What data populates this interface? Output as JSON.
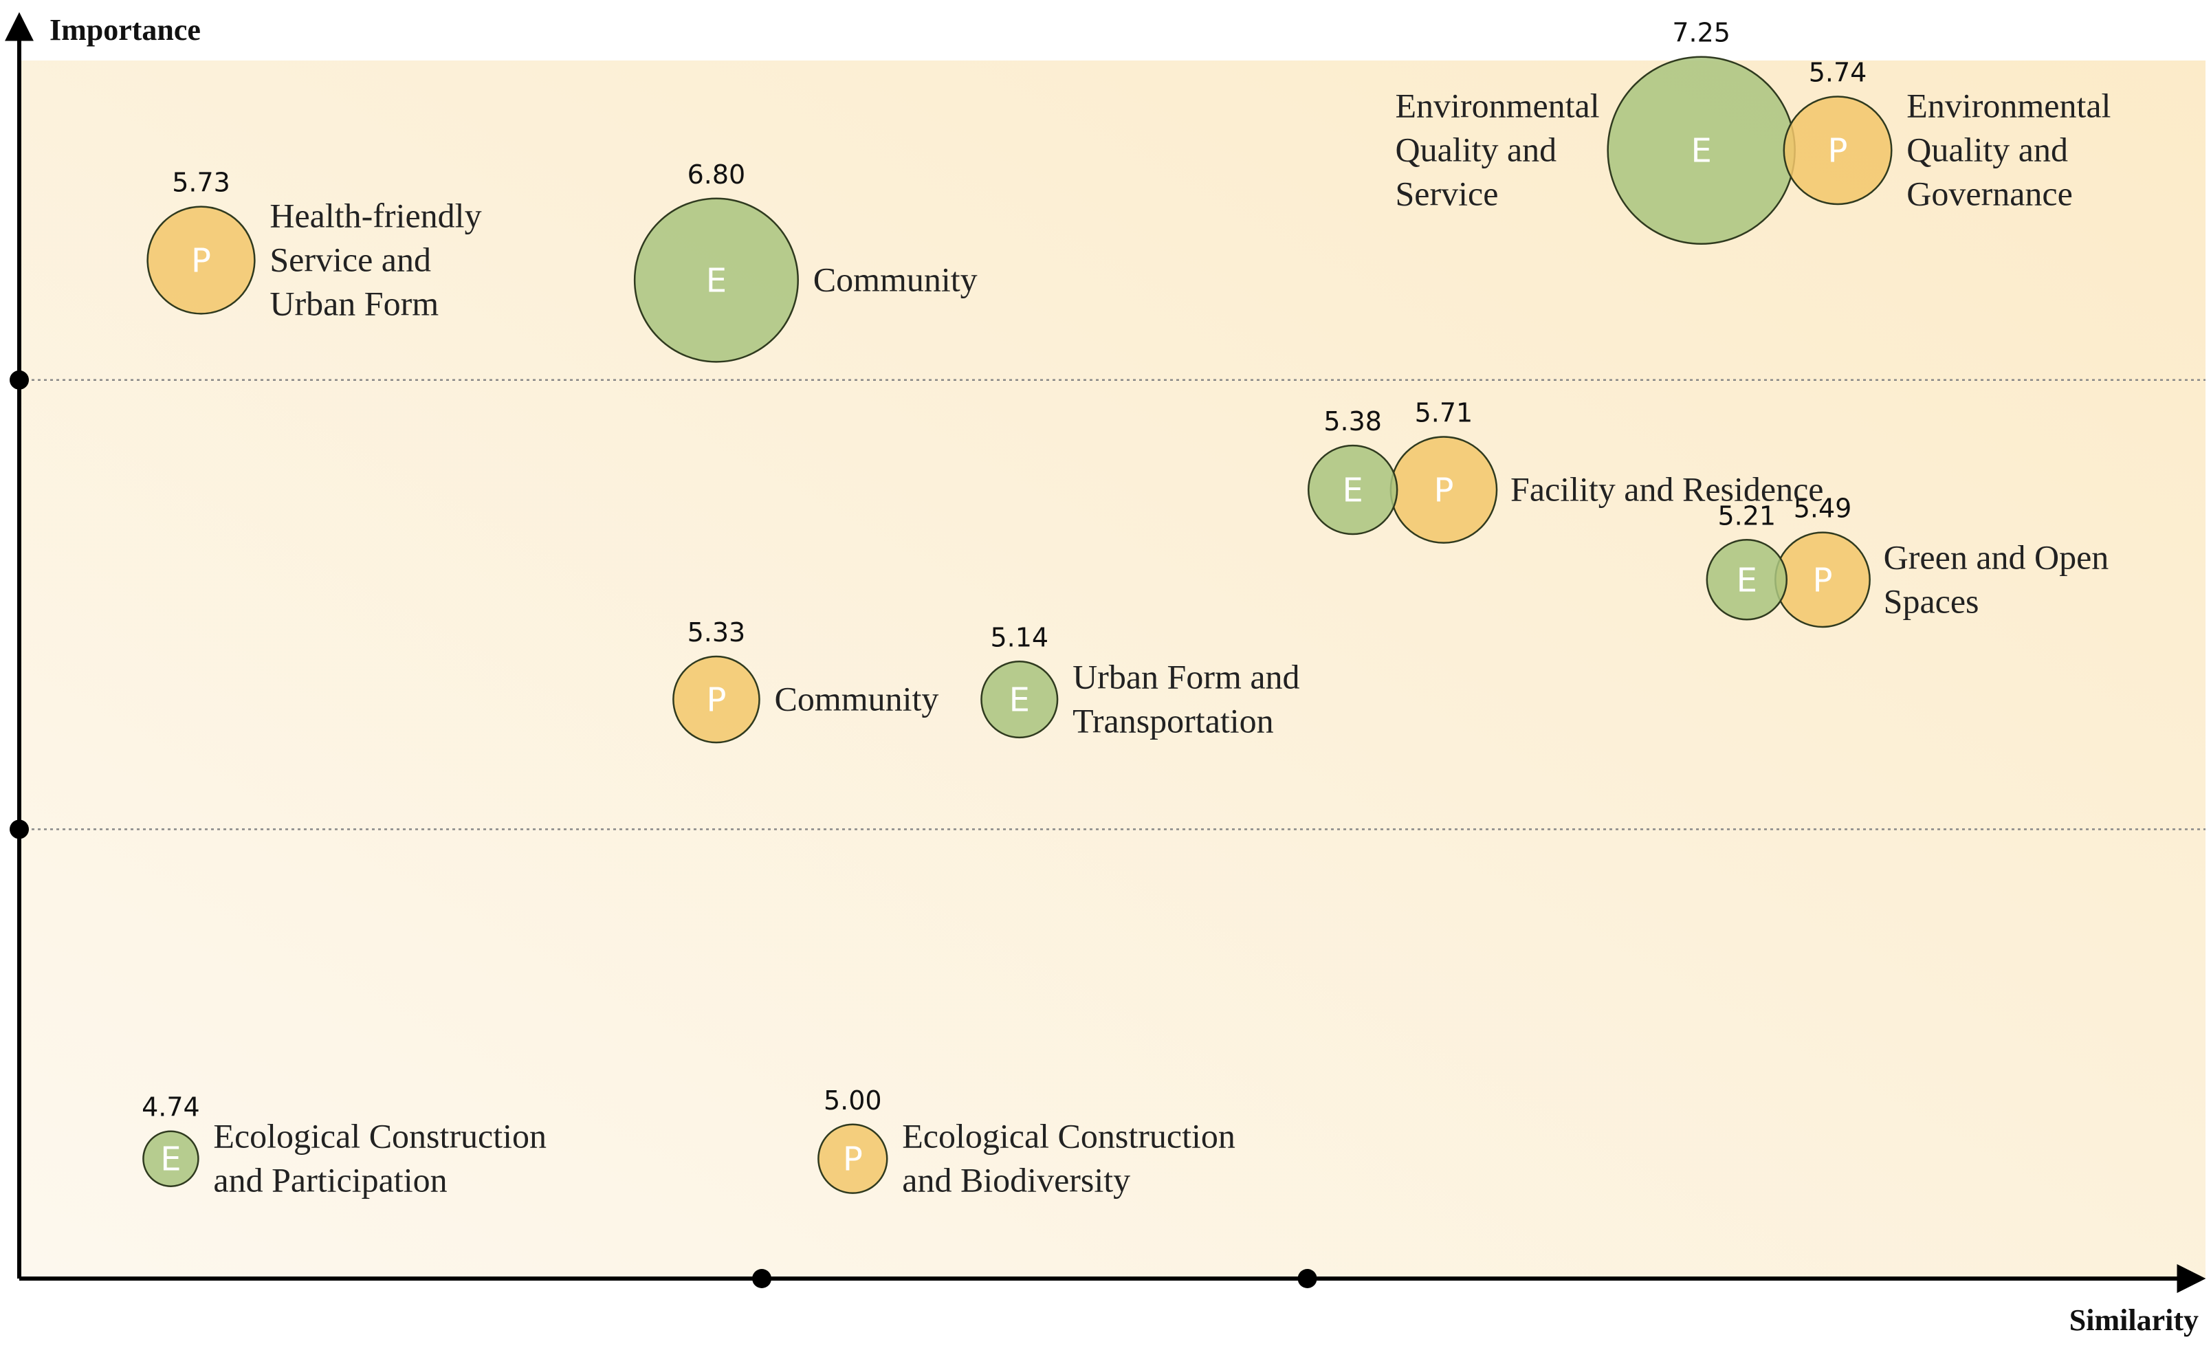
{
  "chart_data": {
    "type": "scatter",
    "subtype": "bubble",
    "xlabel": "Similarity",
    "ylabel": "Importance",
    "grid": "horizontal dotted lines at tier boundaries",
    "legend": "none",
    "colors": {
      "E": "#a9c47f",
      "P": "#f2c76b",
      "outline": "#2f3a1f",
      "background_start": "#fcebc9",
      "background_end": "#fdf8ee"
    },
    "series": [
      {
        "name": "E",
        "points": [
          {
            "label": "Environmental Quality and Service",
            "value": "7.25",
            "x": 5.55,
            "y": 5.65,
            "lines": [
              "Environmental",
              "Quality and",
              "Service"
            ],
            "label_side": "left"
          },
          {
            "label": "Community",
            "value": "6.80",
            "x": 2.3,
            "y": 5.0,
            "lines": [
              "Community"
            ],
            "label_side": "right"
          },
          {
            "label": "Facility and Residence",
            "value": "5.38",
            "x": 4.4,
            "y": 3.95,
            "lines": [
              "Facility and Residence"
            ],
            "label_side": "right",
            "label_follows": "P"
          },
          {
            "label": "Green and Open Spaces",
            "value": "5.21",
            "x": 5.7,
            "y": 3.5,
            "lines": [
              "Green and Open",
              "Spaces"
            ],
            "label_side": "right",
            "label_follows": "P"
          },
          {
            "label": "Urban Form and Transportation",
            "value": "5.14",
            "x": 3.3,
            "y": 2.9,
            "lines": [
              "Urban Form and",
              "Transportation"
            ],
            "label_side": "right"
          },
          {
            "label": "Ecological Construction and Participation",
            "value": "4.74",
            "x": 0.5,
            "y": 0.6,
            "lines": [
              "Ecological Construction",
              "and Participation"
            ],
            "label_side": "right"
          }
        ]
      },
      {
        "name": "P",
        "points": [
          {
            "label": "Environmental Quality and Governance",
            "value": "5.74",
            "x": 6.0,
            "y": 5.65,
            "lines": [
              "Environmental",
              "Quality and",
              "Governance"
            ],
            "label_side": "right"
          },
          {
            "label": "Health-friendly Service and Urban Form",
            "value": "5.73",
            "x": 0.6,
            "y": 5.1,
            "lines": [
              "Health-friendly",
              "Service and",
              "Urban Form"
            ],
            "label_side": "right"
          },
          {
            "label": "Facility and Residence",
            "value": "5.71",
            "x": 4.7,
            "y": 3.95,
            "lines": [],
            "label_side": "none"
          },
          {
            "label": "Green and Open Spaces",
            "value": "5.49",
            "x": 5.95,
            "y": 3.5,
            "lines": [],
            "label_side": "none"
          },
          {
            "label": "Community",
            "value": "5.33",
            "x": 2.3,
            "y": 2.9,
            "lines": [
              "Community"
            ],
            "label_side": "right"
          },
          {
            "label": "Ecological Construction and Biodiversity",
            "value": "5.00",
            "x": 2.75,
            "y": 0.6,
            "lines": [
              "Ecological Construction",
              "and Biodiversity"
            ],
            "label_side": "right"
          }
        ]
      }
    ],
    "xlim": [
      0,
      7.15
    ],
    "ylim": [
      0,
      6.1
    ],
    "x_dividers": [
      2.45,
      4.25
    ],
    "y_dividers": [
      2.25,
      4.5
    ],
    "size_value_range": [
      4.74,
      7.25
    ]
  }
}
